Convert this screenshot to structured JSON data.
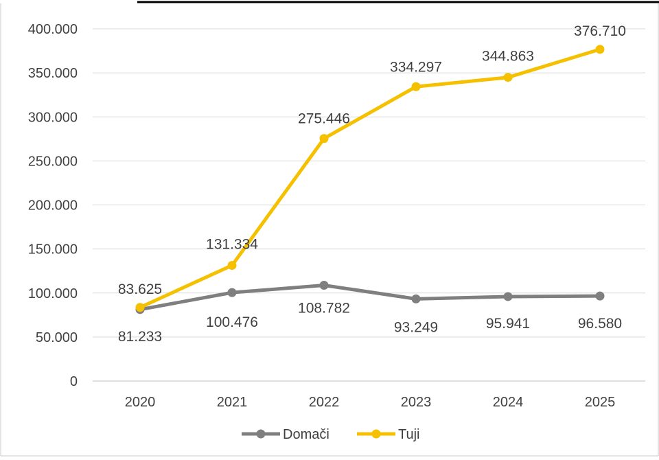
{
  "chart_data": {
    "type": "line",
    "categories": [
      "2020",
      "2021",
      "2022",
      "2023",
      "2024",
      "2025"
    ],
    "y_ticks": [
      "0",
      "50.000",
      "100.000",
      "150.000",
      "200.000",
      "250.000",
      "300.000",
      "350.000",
      "400.000"
    ],
    "ylim": [
      0,
      400000
    ],
    "grid": true,
    "legend_position": "bottom",
    "series": [
      {
        "name": "Domači",
        "color": "#7f7f7f",
        "values": [
          81233,
          100476,
          108782,
          93249,
          95941,
          96580
        ],
        "labels": [
          "81.233",
          "100.476",
          "108.782",
          "93.249",
          "95.941",
          "96.580"
        ]
      },
      {
        "name": "Tuji",
        "color": "#f5c000",
        "values": [
          83625,
          131334,
          275446,
          334297,
          344863,
          376710
        ],
        "labels": [
          "83.625",
          "131.334",
          "275.446",
          "334.297",
          "344.863",
          "376.710"
        ]
      }
    ]
  }
}
